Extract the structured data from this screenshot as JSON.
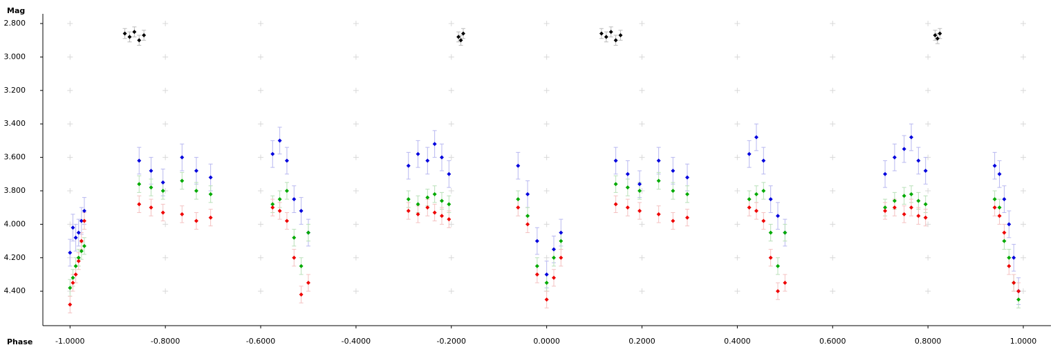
{
  "chart_data": {
    "type": "scatter",
    "ylabel": "Mag",
    "xlabel": "Phase",
    "xlim": [
      -1.057,
      1.058
    ],
    "ylim": [
      4.606,
      2.742
    ],
    "xticks": [
      {
        "value": -1.0,
        "label": "-1.0000"
      },
      {
        "value": -0.8,
        "label": "-0.8000"
      },
      {
        "value": -0.6,
        "label": "-0.6000"
      },
      {
        "value": -0.4,
        "label": "-0.4000"
      },
      {
        "value": -0.2,
        "label": "-0.2000"
      },
      {
        "value": 0.0,
        "label": "0.0000"
      },
      {
        "value": 0.2,
        "label": "0.2000"
      },
      {
        "value": 0.4,
        "label": "0.4000"
      },
      {
        "value": 0.6,
        "label": "0.6000"
      },
      {
        "value": 0.8,
        "label": "0.8000"
      },
      {
        "value": 1.0,
        "label": "1.0000"
      }
    ],
    "yticks": [
      {
        "value": 2.8,
        "label": "2.800"
      },
      {
        "value": 3.0,
        "label": "3.000"
      },
      {
        "value": 3.2,
        "label": "3.200"
      },
      {
        "value": 3.4,
        "label": "3.400"
      },
      {
        "value": 3.6,
        "label": "3.600"
      },
      {
        "value": 3.8,
        "label": "3.800"
      },
      {
        "value": 4.0,
        "label": "4.000"
      },
      {
        "value": 4.2,
        "label": "4.200"
      },
      {
        "value": 4.4,
        "label": "4.400"
      }
    ],
    "grid": true,
    "series": [
      {
        "color": "#000000",
        "errorcolor": "#bbbbbb",
        "error": 0.03,
        "x": [
          -0.885,
          -0.875,
          -0.865,
          -0.855,
          -0.845,
          -0.185,
          -0.18,
          -0.175,
          0.115,
          0.125,
          0.135,
          0.145,
          0.155,
          0.815,
          0.82,
          0.825
        ],
        "values": [
          2.86,
          2.88,
          2.85,
          2.9,
          2.87,
          2.88,
          2.9,
          2.86,
          2.86,
          2.88,
          2.85,
          2.9,
          2.87,
          2.87,
          2.89,
          2.86
        ]
      },
      {
        "color": "#0000dd",
        "errorcolor": "#b8b8f0",
        "error": 0.08,
        "x": [
          -1.0,
          -0.994,
          -0.988,
          -0.982,
          -0.976,
          -0.97,
          -0.855,
          -0.83,
          -0.805,
          -0.765,
          -0.735,
          -0.705,
          -0.575,
          -0.56,
          -0.545,
          -0.53,
          -0.515,
          -0.5,
          -0.29,
          -0.27,
          -0.25,
          -0.235,
          -0.22,
          -0.205,
          -0.06,
          -0.04,
          -0.02,
          0.0,
          0.015,
          0.03,
          0.145,
          0.17,
          0.195,
          0.235,
          0.265,
          0.295,
          0.425,
          0.44,
          0.455,
          0.47,
          0.485,
          0.5,
          0.71,
          0.73,
          0.75,
          0.765,
          0.78,
          0.795,
          0.94,
          0.95,
          0.96,
          0.97,
          0.98,
          0.99
        ],
        "values": [
          4.17,
          4.02,
          4.08,
          4.05,
          3.98,
          3.92,
          3.62,
          3.68,
          3.75,
          3.6,
          3.68,
          3.72,
          3.58,
          3.5,
          3.62,
          3.85,
          3.92,
          4.05,
          3.65,
          3.58,
          3.62,
          3.52,
          3.6,
          3.7,
          3.65,
          3.82,
          4.1,
          4.3,
          4.15,
          4.05,
          3.62,
          3.7,
          3.76,
          3.62,
          3.68,
          3.72,
          3.58,
          3.48,
          3.62,
          3.85,
          3.95,
          4.05,
          3.7,
          3.6,
          3.55,
          3.48,
          3.62,
          3.68,
          3.65,
          3.7,
          3.85,
          4.0,
          4.2,
          4.4
        ]
      },
      {
        "color": "#00aa00",
        "errorcolor": "#b8e0b8",
        "error": 0.05,
        "x": [
          -1.0,
          -0.994,
          -0.988,
          -0.982,
          -0.976,
          -0.97,
          -0.855,
          -0.83,
          -0.805,
          -0.765,
          -0.735,
          -0.705,
          -0.575,
          -0.56,
          -0.545,
          -0.53,
          -0.515,
          -0.5,
          -0.29,
          -0.27,
          -0.25,
          -0.235,
          -0.22,
          -0.205,
          -0.06,
          -0.04,
          -0.02,
          0.0,
          0.015,
          0.03,
          0.145,
          0.17,
          0.195,
          0.235,
          0.265,
          0.295,
          0.425,
          0.44,
          0.455,
          0.47,
          0.485,
          0.5,
          0.71,
          0.73,
          0.75,
          0.765,
          0.78,
          0.795,
          0.94,
          0.95,
          0.96,
          0.97,
          0.98,
          0.99
        ],
        "values": [
          4.38,
          4.32,
          4.25,
          4.2,
          4.16,
          4.13,
          3.76,
          3.78,
          3.8,
          3.74,
          3.8,
          3.82,
          3.88,
          3.85,
          3.8,
          4.08,
          4.25,
          4.05,
          3.85,
          3.88,
          3.84,
          3.82,
          3.86,
          3.88,
          3.85,
          3.95,
          4.25,
          4.35,
          4.2,
          4.1,
          3.76,
          3.78,
          3.8,
          3.74,
          3.8,
          3.82,
          3.85,
          3.82,
          3.8,
          4.05,
          4.25,
          4.05,
          3.9,
          3.86,
          3.83,
          3.82,
          3.86,
          3.88,
          3.85,
          3.9,
          4.1,
          4.2,
          4.35,
          4.45
        ]
      },
      {
        "color": "#ee0000",
        "errorcolor": "#f4c0c0",
        "error": 0.05,
        "x": [
          -1.0,
          -0.994,
          -0.988,
          -0.982,
          -0.976,
          -0.97,
          -0.855,
          -0.83,
          -0.805,
          -0.765,
          -0.735,
          -0.705,
          -0.575,
          -0.56,
          -0.545,
          -0.53,
          -0.515,
          -0.5,
          -0.29,
          -0.27,
          -0.25,
          -0.235,
          -0.22,
          -0.205,
          -0.06,
          -0.04,
          -0.02,
          0.0,
          0.015,
          0.03,
          0.145,
          0.17,
          0.195,
          0.235,
          0.265,
          0.295,
          0.425,
          0.44,
          0.455,
          0.47,
          0.485,
          0.5,
          0.71,
          0.73,
          0.75,
          0.765,
          0.78,
          0.795,
          0.94,
          0.95,
          0.96,
          0.97,
          0.98,
          0.99
        ],
        "values": [
          4.48,
          4.35,
          4.3,
          4.22,
          4.1,
          3.98,
          3.88,
          3.9,
          3.93,
          3.94,
          3.98,
          3.96,
          3.9,
          3.92,
          3.98,
          4.2,
          4.42,
          4.35,
          3.92,
          3.94,
          3.9,
          3.93,
          3.95,
          3.97,
          3.9,
          4.0,
          4.3,
          4.45,
          4.32,
          4.2,
          3.88,
          3.9,
          3.92,
          3.94,
          3.98,
          3.96,
          3.9,
          3.92,
          3.98,
          4.2,
          4.4,
          4.35,
          3.92,
          3.9,
          3.94,
          3.9,
          3.95,
          3.96,
          3.9,
          3.95,
          4.05,
          4.25,
          4.35,
          4.4
        ]
      }
    ]
  }
}
